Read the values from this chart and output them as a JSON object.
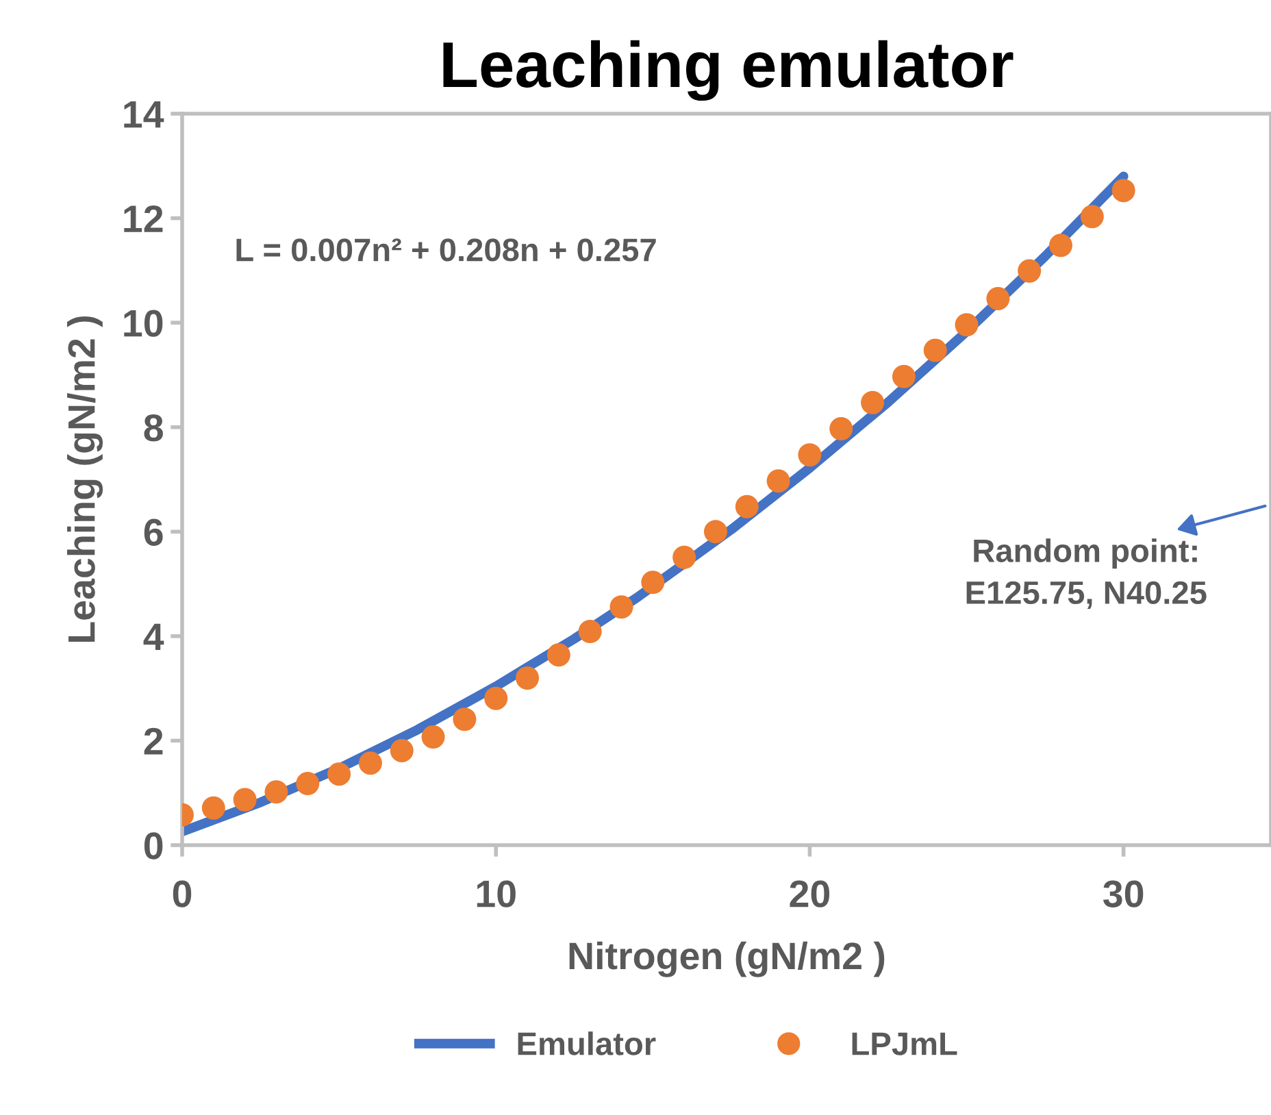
{
  "chart_data": {
    "type": "scatter",
    "title": "Leaching emulator",
    "xlabel": "Nitrogen (gN/m2 )",
    "ylabel": "Leaching (gN/m2 )",
    "xlim": [
      0,
      34.7
    ],
    "xticks": [
      0,
      10,
      20,
      30
    ],
    "ylim": [
      0,
      14
    ],
    "yticks": [
      0,
      2,
      4,
      6,
      8,
      10,
      12,
      14
    ],
    "grid": false,
    "legend": "bottom",
    "marker": "circle",
    "series": [
      {
        "name": "Emulator",
        "type": "line",
        "color": "#4472c4",
        "line_style": "solid",
        "marker": "none",
        "x": [
          0,
          2.5,
          5,
          7.5,
          10,
          12.5,
          14.5,
          17.5,
          20,
          22.5,
          25,
          27.5,
          30
        ],
        "values": [
          0.26,
          0.82,
          1.47,
          2.21,
          3.04,
          3.95,
          4.74,
          6.04,
          7.22,
          8.48,
          9.83,
          11.27,
          12.8
        ]
      },
      {
        "name": "LPJmL",
        "color": "#ed7d31",
        "x": [
          0,
          1,
          2,
          3,
          4,
          5,
          6,
          7,
          8,
          9,
          10,
          11,
          12,
          13,
          14,
          15,
          16,
          17,
          18,
          19,
          20,
          21,
          22,
          23,
          24,
          25,
          26,
          27,
          28,
          29,
          30
        ],
        "values": [
          0.58,
          0.71,
          0.87,
          1.02,
          1.18,
          1.36,
          1.57,
          1.81,
          2.07,
          2.41,
          2.81,
          3.2,
          3.64,
          4.09,
          4.56,
          5.03,
          5.51,
          6.0,
          6.48,
          6.97,
          7.47,
          7.97,
          8.47,
          8.97,
          9.47,
          9.96,
          10.46,
          10.99,
          11.48,
          12.03,
          12.53
        ]
      }
    ],
    "annotations": [
      "L = 0.007n² + 0.208n + 0.257",
      "Random point:\nE125.75, N40.25"
    ]
  }
}
